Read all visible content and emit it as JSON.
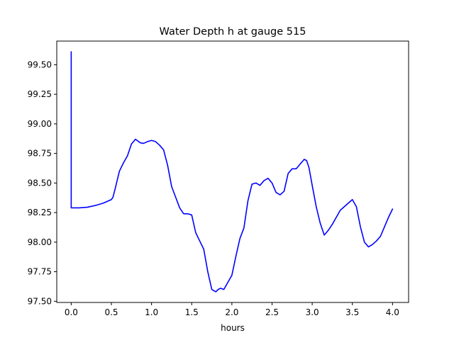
{
  "chart_data": {
    "type": "line",
    "title": "Water Depth h at gauge 515",
    "xlabel": "hours",
    "ylabel": "",
    "xlim": [
      -0.18,
      4.2
    ],
    "ylim": [
      97.49,
      99.7
    ],
    "x_ticks": [
      0.0,
      0.5,
      1.0,
      1.5,
      2.0,
      2.5,
      3.0,
      3.5,
      4.0
    ],
    "x_tick_labels": [
      "0.0",
      "0.5",
      "1.0",
      "1.5",
      "2.0",
      "2.5",
      "3.0",
      "3.5",
      "4.0"
    ],
    "y_ticks": [
      97.5,
      97.75,
      98.0,
      98.25,
      98.5,
      98.75,
      99.0,
      99.25,
      99.5
    ],
    "y_tick_labels": [
      "97.50",
      "97.75",
      "98.00",
      "98.25",
      "98.50",
      "98.75",
      "99.00",
      "99.25",
      "99.50"
    ],
    "grid": false,
    "legend": "none",
    "series": [
      {
        "color": "#0000ff",
        "x": [
          0.0,
          0.0,
          0.02,
          0.1,
          0.2,
          0.3,
          0.4,
          0.5,
          0.52,
          0.55,
          0.6,
          0.65,
          0.7,
          0.75,
          0.8,
          0.83,
          0.86,
          0.9,
          0.95,
          1.0,
          1.05,
          1.1,
          1.15,
          1.2,
          1.25,
          1.3,
          1.35,
          1.4,
          1.45,
          1.5,
          1.55,
          1.6,
          1.65,
          1.7,
          1.75,
          1.8,
          1.83,
          1.86,
          1.9,
          1.95,
          2.0,
          2.05,
          2.1,
          2.15,
          2.2,
          2.25,
          2.3,
          2.35,
          2.4,
          2.45,
          2.5,
          2.55,
          2.6,
          2.65,
          2.7,
          2.75,
          2.8,
          2.85,
          2.9,
          2.93,
          2.96,
          3.0,
          3.05,
          3.1,
          3.15,
          3.2,
          3.25,
          3.3,
          3.35,
          3.4,
          3.45,
          3.5,
          3.55,
          3.6,
          3.65,
          3.7,
          3.75,
          3.8,
          3.85,
          3.9,
          3.95,
          4.0
        ],
        "y": [
          99.61,
          98.29,
          98.29,
          98.29,
          98.295,
          98.31,
          98.33,
          98.36,
          98.38,
          98.46,
          98.6,
          98.67,
          98.73,
          98.83,
          98.87,
          98.855,
          98.84,
          98.835,
          98.85,
          98.86,
          98.85,
          98.82,
          98.78,
          98.65,
          98.47,
          98.38,
          98.29,
          98.24,
          98.24,
          98.23,
          98.08,
          98.01,
          97.94,
          97.75,
          97.6,
          97.58,
          97.6,
          97.61,
          97.6,
          97.66,
          97.72,
          97.88,
          98.03,
          98.12,
          98.35,
          98.49,
          98.5,
          98.48,
          98.52,
          98.54,
          98.5,
          98.42,
          98.4,
          98.43,
          98.58,
          98.62,
          98.62,
          98.66,
          98.7,
          98.69,
          98.63,
          98.48,
          98.3,
          98.16,
          98.06,
          98.1,
          98.15,
          98.21,
          98.27,
          98.3,
          98.33,
          98.36,
          98.3,
          98.13,
          98.0,
          97.96,
          97.98,
          98.01,
          98.05,
          98.13,
          98.21,
          98.28
        ]
      }
    ]
  }
}
